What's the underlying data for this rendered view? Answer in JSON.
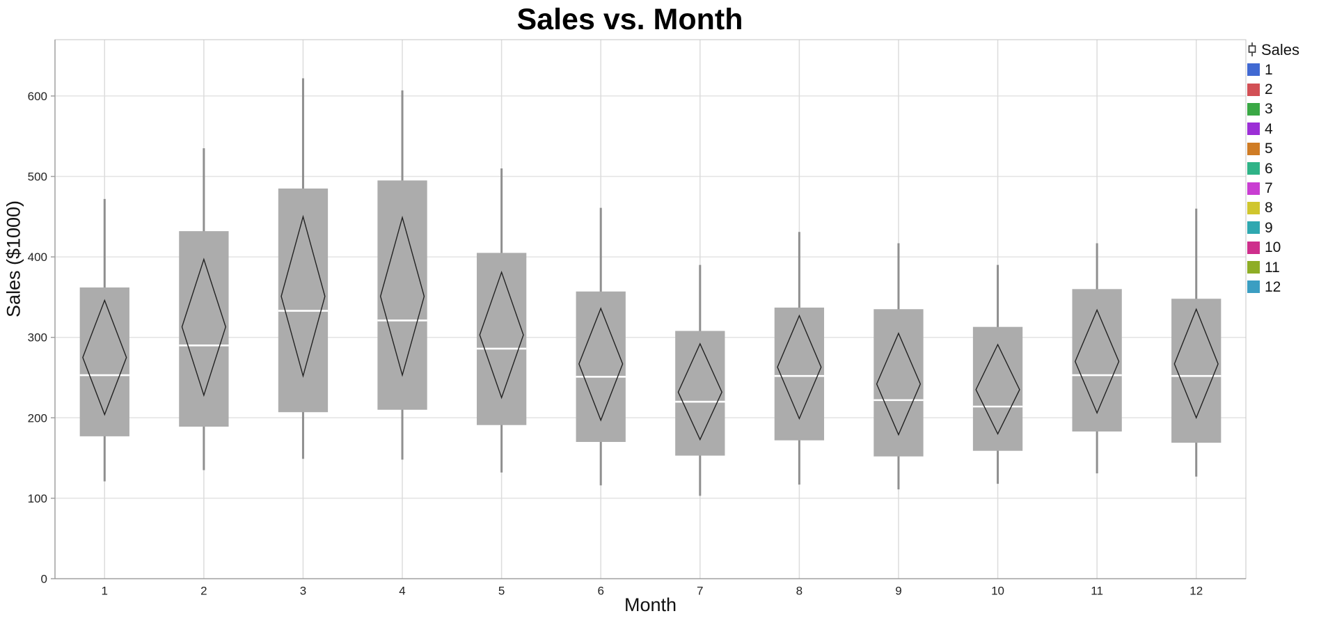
{
  "title": "Sales vs. Month",
  "chart_data": {
    "type": "box",
    "title": "Sales vs. Month",
    "xlabel": "Month",
    "ylabel": "Sales ($1000)",
    "ylim": [
      0,
      670
    ],
    "yticks": [
      0,
      100,
      200,
      300,
      400,
      500,
      600
    ],
    "grid": true,
    "legend_position": "right",
    "categories": [
      "1",
      "2",
      "3",
      "4",
      "5",
      "6",
      "7",
      "8",
      "9",
      "10",
      "11",
      "12"
    ],
    "series": [
      {
        "label": "1",
        "whisker_low": 121,
        "q1": 177,
        "median": 253,
        "q3": 362,
        "whisker_high": 472,
        "mean": 275,
        "ci_low": 204,
        "ci_high": 346
      },
      {
        "label": "2",
        "whisker_low": 135,
        "q1": 189,
        "median": 290,
        "q3": 432,
        "whisker_high": 535,
        "mean": 313,
        "ci_low": 228,
        "ci_high": 397
      },
      {
        "label": "3",
        "whisker_low": 149,
        "q1": 207,
        "median": 333,
        "q3": 485,
        "whisker_high": 622,
        "mean": 351,
        "ci_low": 252,
        "ci_high": 450
      },
      {
        "label": "4",
        "whisker_low": 148,
        "q1": 210,
        "median": 321,
        "q3": 495,
        "whisker_high": 607,
        "mean": 351,
        "ci_low": 253,
        "ci_high": 449
      },
      {
        "label": "5",
        "whisker_low": 132,
        "q1": 191,
        "median": 286,
        "q3": 405,
        "whisker_high": 510,
        "mean": 303,
        "ci_low": 225,
        "ci_high": 381
      },
      {
        "label": "6",
        "whisker_low": 116,
        "q1": 170,
        "median": 251,
        "q3": 357,
        "whisker_high": 461,
        "mean": 267,
        "ci_low": 197,
        "ci_high": 336
      },
      {
        "label": "7",
        "whisker_low": 103,
        "q1": 153,
        "median": 220,
        "q3": 308,
        "whisker_high": 390,
        "mean": 232,
        "ci_low": 173,
        "ci_high": 292
      },
      {
        "label": "8",
        "whisker_low": 117,
        "q1": 172,
        "median": 252,
        "q3": 337,
        "whisker_high": 431,
        "mean": 263,
        "ci_low": 199,
        "ci_high": 327
      },
      {
        "label": "9",
        "whisker_low": 111,
        "q1": 152,
        "median": 222,
        "q3": 335,
        "whisker_high": 417,
        "mean": 242,
        "ci_low": 179,
        "ci_high": 305
      },
      {
        "label": "10",
        "whisker_low": 118,
        "q1": 159,
        "median": 214,
        "q3": 313,
        "whisker_high": 390,
        "mean": 235,
        "ci_low": 180,
        "ci_high": 291
      },
      {
        "label": "11",
        "whisker_low": 131,
        "q1": 183,
        "median": 253,
        "q3": 360,
        "whisker_high": 417,
        "mean": 270,
        "ci_low": 206,
        "ci_high": 334
      },
      {
        "label": "12",
        "whisker_low": 127,
        "q1": 169,
        "median": 252,
        "q3": 348,
        "whisker_high": 460,
        "mean": 267,
        "ci_low": 200,
        "ci_high": 335
      }
    ]
  },
  "legend": {
    "title": "Sales",
    "items": [
      {
        "label": "1",
        "color": "#4169d2"
      },
      {
        "label": "2",
        "color": "#d25055"
      },
      {
        "label": "3",
        "color": "#3aa845"
      },
      {
        "label": "4",
        "color": "#9c2fd6"
      },
      {
        "label": "5",
        "color": "#cf7c25"
      },
      {
        "label": "6",
        "color": "#2fb387"
      },
      {
        "label": "7",
        "color": "#c93ed2"
      },
      {
        "label": "8",
        "color": "#d0c62e"
      },
      {
        "label": "9",
        "color": "#2fa8b0"
      },
      {
        "label": "10",
        "color": "#ce2f8c"
      },
      {
        "label": "11",
        "color": "#8ead26"
      },
      {
        "label": "12",
        "color": "#3b9ec2"
      }
    ]
  },
  "style": {
    "box_fill": "#acacac",
    "whisker_color": "#8f8f8f",
    "median_color": "#ffffff",
    "diamond_color": "#222222",
    "grid_h_color": "#e3e3e3",
    "grid_v_color": "#dcdcdc",
    "frame_color": "#c6c6c6",
    "axis_color": "#9f9f9f",
    "tick_text_color": "#222222",
    "background": "#ffffff"
  }
}
